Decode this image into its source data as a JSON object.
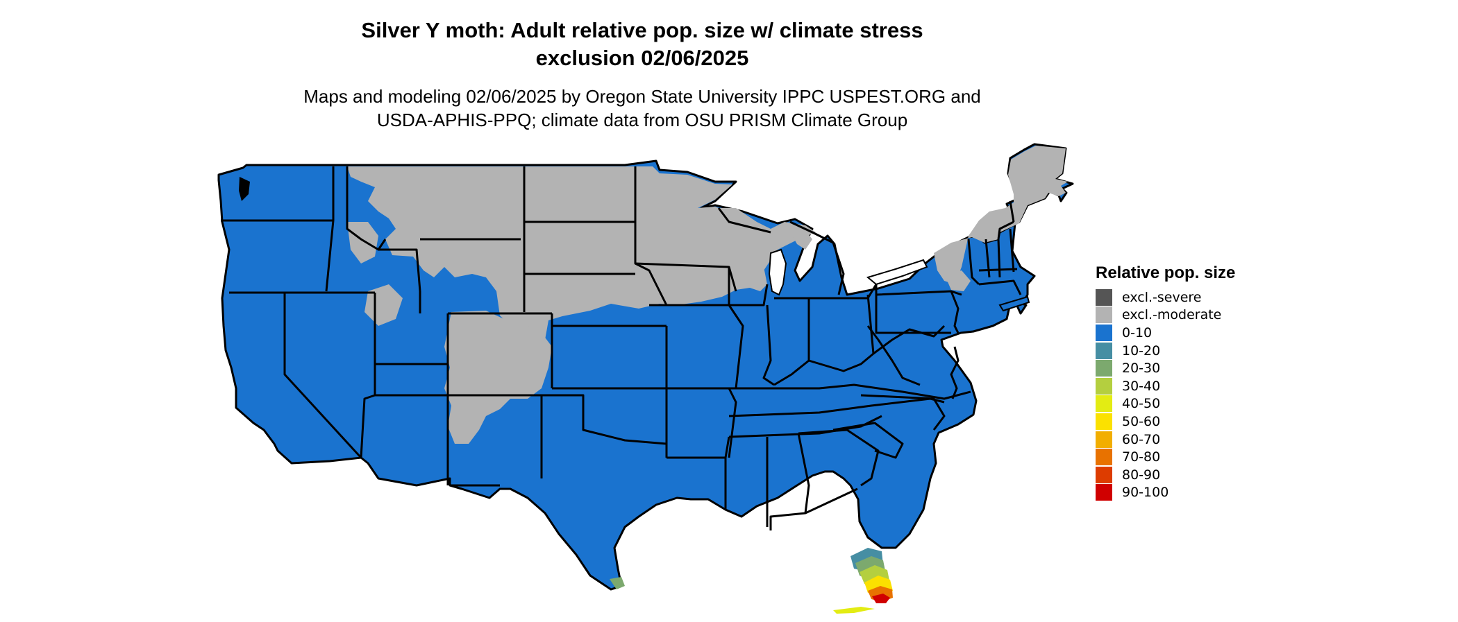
{
  "map": {
    "title_line1": "Silver Y moth: Adult relative pop. size w/ climate stress",
    "title_line2": "exclusion 02/06/2025",
    "subtitle_line1": "Maps and modeling 02/06/2025 by Oregon State University IPPC USPEST.ORG and",
    "subtitle_line2": "USDA-APHIS-PPQ; climate data from OSU PRISM Climate Group",
    "region": "Contiguous United States"
  },
  "legend": {
    "title": "Relative pop. size",
    "items": [
      {
        "label": "excl.-severe",
        "color": "#555555"
      },
      {
        "label": "excl.-moderate",
        "color": "#b3b3b3"
      },
      {
        "label": "0-10",
        "color": "#1a73cf"
      },
      {
        "label": "10-20",
        "color": "#468ea3"
      },
      {
        "label": "20-30",
        "color": "#7ca96e"
      },
      {
        "label": "30-40",
        "color": "#b4cf3f"
      },
      {
        "label": "40-50",
        "color": "#e3ec13"
      },
      {
        "label": "50-60",
        "color": "#fbe100"
      },
      {
        "label": "60-70",
        "color": "#f2ae00"
      },
      {
        "label": "70-80",
        "color": "#e87200"
      },
      {
        "label": "80-90",
        "color": "#dd3c00"
      },
      {
        "label": "90-100",
        "color": "#d00000"
      }
    ]
  },
  "colors": {
    "blue": "#1a73cf",
    "gray": "#b3b3b3",
    "border": "#000000"
  }
}
